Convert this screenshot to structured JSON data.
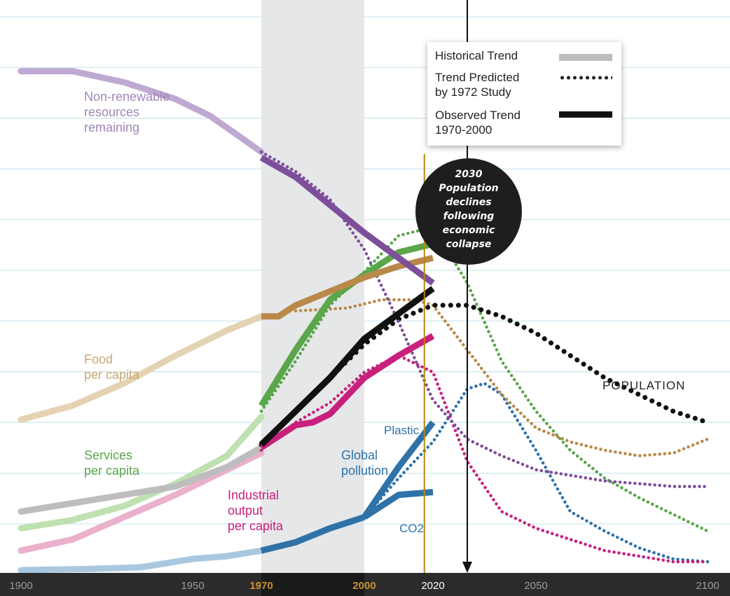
{
  "chart_data": {
    "type": "line",
    "title": "",
    "xlabel": "",
    "ylabel": "",
    "xlim": [
      1900,
      2100
    ],
    "ylim": [
      0,
      100
    ],
    "x_ticks": [
      1900,
      1950,
      1970,
      2000,
      2020,
      2050,
      2100
    ],
    "x_tick_labels": [
      "1900",
      "1950",
      "1970",
      "2000",
      "2020",
      "2050",
      "2100"
    ],
    "highlight_ticks": [
      "1970",
      "2000"
    ],
    "shaded_range": [
      1970,
      2000
    ],
    "reference_line_x": 2017.5,
    "arrow_x": 2030,
    "colors": {
      "resources": "#7d4f9a",
      "food": "#b9894a",
      "services": "#5aa64a",
      "population": "#111111",
      "industrial": "#c8207c",
      "pollution": "#2f72a8",
      "historical": "#bdbdbd",
      "band": "#e6e7e9",
      "gridline": "#d0e6ef",
      "axis_bar": "#2b2b2b",
      "refline": "#b8860b",
      "tick_highlight": "#c9902f"
    },
    "series": [
      {
        "key": "resources",
        "name": "Non-renewable resources remaining",
        "historical": [
          [
            1900,
            90
          ],
          [
            1915,
            90
          ],
          [
            1930,
            88
          ],
          [
            1945,
            85
          ],
          [
            1955,
            82
          ],
          [
            1962,
            79
          ],
          [
            1970,
            75.5
          ]
        ],
        "observed": [
          [
            1970,
            74.5
          ],
          [
            1980,
            71
          ],
          [
            1990,
            66
          ],
          [
            2000,
            61
          ],
          [
            2010,
            56.5
          ],
          [
            2020,
            52
          ]
        ],
        "predicted": [
          [
            1970,
            75.5
          ],
          [
            1980,
            72
          ],
          [
            1990,
            67
          ],
          [
            2000,
            58
          ],
          [
            2010,
            45
          ],
          [
            2020,
            31
          ],
          [
            2030,
            24
          ],
          [
            2040,
            21
          ],
          [
            2050,
            18.5
          ],
          [
            2060,
            17.5
          ],
          [
            2070,
            16.5
          ],
          [
            2080,
            16
          ],
          [
            2090,
            15.5
          ],
          [
            2100,
            15.5
          ]
        ]
      },
      {
        "key": "food",
        "name": "Food per capita",
        "historical": [
          [
            1900,
            27.5
          ],
          [
            1915,
            30
          ],
          [
            1930,
            34
          ],
          [
            1945,
            39
          ],
          [
            1960,
            43.5
          ],
          [
            1970,
            46
          ]
        ],
        "observed": [
          [
            1970,
            46
          ],
          [
            1975,
            46
          ],
          [
            1980,
            48
          ],
          [
            1990,
            50.5
          ],
          [
            2000,
            53
          ],
          [
            2010,
            55
          ],
          [
            2020,
            56.5
          ]
        ],
        "predicted": [
          [
            1980,
            47
          ],
          [
            1995,
            47.5
          ],
          [
            2005,
            49
          ],
          [
            2015,
            49
          ],
          [
            2020,
            48
          ],
          [
            2030,
            40
          ],
          [
            2040,
            32
          ],
          [
            2050,
            26
          ],
          [
            2060,
            23.5
          ],
          [
            2070,
            22
          ],
          [
            2080,
            21
          ],
          [
            2090,
            21.5
          ],
          [
            2100,
            24
          ]
        ]
      },
      {
        "key": "services",
        "name": "Services per capita",
        "historical": [
          [
            1900,
            8
          ],
          [
            1915,
            9.5
          ],
          [
            1930,
            12
          ],
          [
            1945,
            16
          ],
          [
            1960,
            21
          ],
          [
            1970,
            28
          ]
        ],
        "observed": [
          [
            1970,
            30
          ],
          [
            1980,
            40
          ],
          [
            1990,
            49
          ],
          [
            2000,
            53.5
          ],
          [
            2010,
            57.5
          ],
          [
            2020,
            59
          ]
        ],
        "predicted": [
          [
            1970,
            29
          ],
          [
            1980,
            38
          ],
          [
            1990,
            48
          ],
          [
            2000,
            54
          ],
          [
            2010,
            60.5
          ],
          [
            2020,
            62
          ],
          [
            2030,
            52
          ],
          [
            2040,
            38
          ],
          [
            2050,
            29
          ],
          [
            2060,
            22
          ],
          [
            2070,
            17
          ],
          [
            2080,
            13.5
          ],
          [
            2090,
            10.5
          ],
          [
            2100,
            7.5
          ]
        ]
      },
      {
        "key": "population",
        "name": "POPULATION",
        "historical": [
          [
            1900,
            11
          ],
          [
            1915,
            12.5
          ],
          [
            1930,
            14
          ],
          [
            1945,
            15.5
          ],
          [
            1960,
            19
          ],
          [
            1970,
            22.5
          ]
        ],
        "observed": [
          [
            1970,
            23
          ],
          [
            1980,
            29
          ],
          [
            1990,
            35
          ],
          [
            2000,
            42
          ],
          [
            2010,
            46.5
          ],
          [
            2020,
            51
          ]
        ],
        "predicted": [
          [
            1970,
            23
          ],
          [
            1980,
            29
          ],
          [
            1990,
            35
          ],
          [
            2000,
            41
          ],
          [
            2010,
            45.5
          ],
          [
            2020,
            48
          ],
          [
            2030,
            48
          ],
          [
            2040,
            46
          ],
          [
            2050,
            43
          ],
          [
            2060,
            39
          ],
          [
            2070,
            35
          ],
          [
            2080,
            32
          ],
          [
            2090,
            29
          ],
          [
            2100,
            27
          ]
        ]
      },
      {
        "key": "industrial",
        "name": "Industrial output per capita",
        "historical": [
          [
            1900,
            4
          ],
          [
            1915,
            6
          ],
          [
            1930,
            10
          ],
          [
            1945,
            14
          ],
          [
            1960,
            18.5
          ],
          [
            1970,
            21.5
          ]
        ],
        "observed": [
          [
            1970,
            22.5
          ],
          [
            1980,
            26.5
          ],
          [
            1985,
            27
          ],
          [
            1990,
            28.5
          ],
          [
            2000,
            35
          ],
          [
            2010,
            39
          ],
          [
            2020,
            42.5
          ]
        ],
        "predicted": [
          [
            1970,
            22
          ],
          [
            1980,
            27
          ],
          [
            1990,
            30.5
          ],
          [
            2000,
            36
          ],
          [
            2010,
            39
          ],
          [
            2020,
            36
          ],
          [
            2030,
            20
          ],
          [
            2040,
            11
          ],
          [
            2050,
            8
          ],
          [
            2060,
            6
          ],
          [
            2070,
            4
          ],
          [
            2080,
            3
          ],
          [
            2090,
            2
          ],
          [
            2100,
            2
          ]
        ]
      },
      {
        "key": "pollution",
        "name": "Global pollution",
        "historical": [
          [
            1900,
            0.5
          ],
          [
            1920,
            0.7
          ],
          [
            1935,
            1
          ],
          [
            1950,
            2.5
          ],
          [
            1960,
            3
          ],
          [
            1970,
            4
          ]
        ],
        "observed": [
          [
            1970,
            4
          ],
          [
            1980,
            5.5
          ],
          [
            1990,
            8
          ],
          [
            2000,
            10
          ]
        ],
        "observed_branches": [
          {
            "name": "Plastic",
            "points": [
              [
                2000,
                10
              ],
              [
                2010,
                19
              ],
              [
                2020,
                27
              ]
            ]
          },
          {
            "name": "CO2",
            "points": [
              [
                2000,
                10
              ],
              [
                2010,
                14
              ],
              [
                2020,
                14.5
              ]
            ]
          }
        ],
        "predicted": [
          [
            2000,
            10
          ],
          [
            2010,
            17
          ],
          [
            2020,
            23.5
          ],
          [
            2030,
            33
          ],
          [
            2035,
            34
          ],
          [
            2040,
            32
          ],
          [
            2050,
            22
          ],
          [
            2060,
            11
          ],
          [
            2070,
            7.5
          ],
          [
            2080,
            4.5
          ],
          [
            2090,
            2.5
          ],
          [
            2100,
            2
          ]
        ]
      }
    ],
    "legend": {
      "position": "top-right",
      "entries": [
        {
          "label": "Historical Trend",
          "style": "solid-gray"
        },
        {
          "label": "Trend Predicted by 1972 Study",
          "style": "dotted"
        },
        {
          "label": "Observed Trend 1970-2000",
          "style": "solid-black"
        }
      ]
    }
  },
  "labels": {
    "resources": [
      "Non-renewable",
      "resources",
      "remaining"
    ],
    "food": [
      "Food",
      "per capita"
    ],
    "services": [
      "Services",
      "per capita"
    ],
    "industrial": [
      "Industrial",
      "output",
      "per capita"
    ],
    "pollution": [
      "Global",
      "pollution"
    ],
    "plastic": "Plastic",
    "co2": "CO2",
    "population": "POPULATION"
  },
  "legend_text": {
    "historical": "Historical Trend",
    "predicted_1": "Trend Predicted",
    "predicted_2": "by 1972 Study",
    "observed_1": "Observed Trend",
    "observed_2": "1970-2000"
  },
  "callout": {
    "year": "2030",
    "lines": [
      "Population",
      "declines",
      "following",
      "economic",
      "collapse"
    ]
  }
}
